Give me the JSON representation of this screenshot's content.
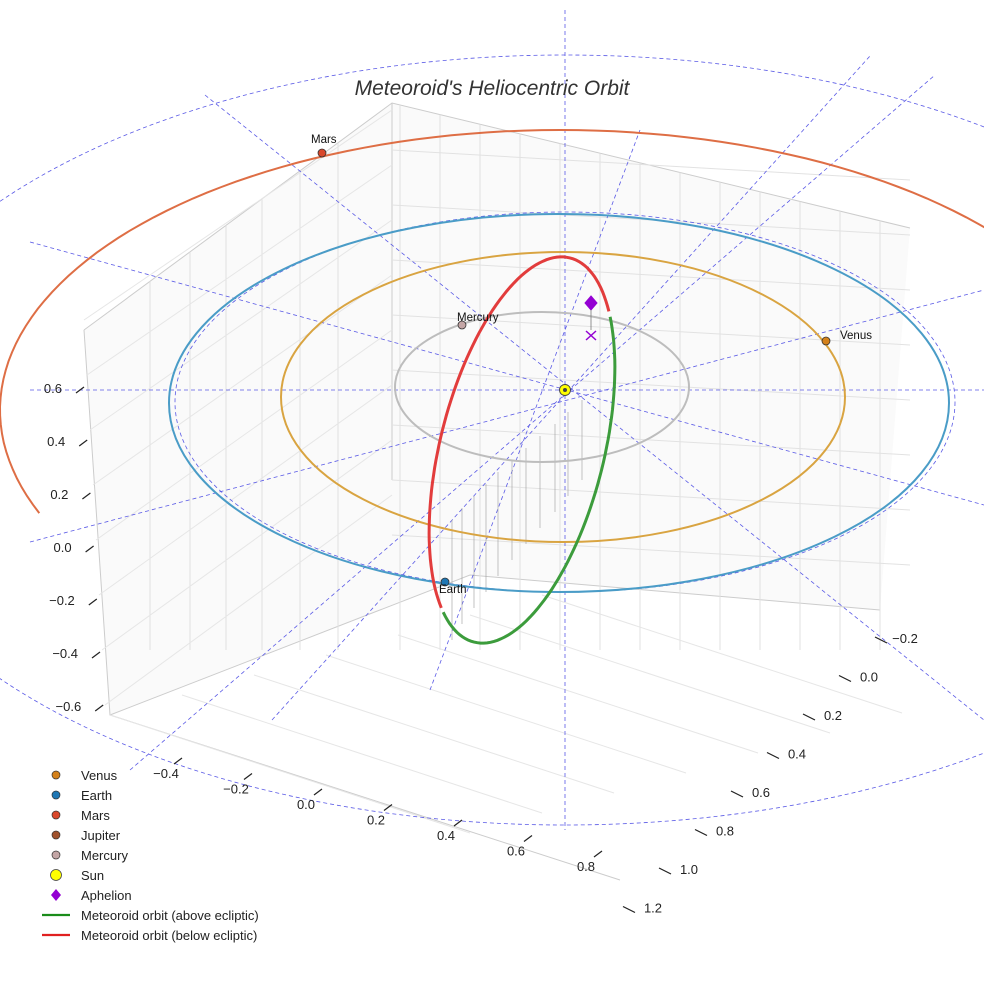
{
  "chart_data": {
    "type": "3d-orbit-plot",
    "title": "Meteoroid's Heliocentric Orbit",
    "axes": {
      "x_ticks": [
        "−0.4",
        "−0.2",
        "0.0",
        "0.2",
        "0.4",
        "0.6",
        "0.8"
      ],
      "y_ticks": [
        "−0.2",
        "0.0",
        "0.2",
        "0.4",
        "0.6",
        "0.8",
        "1.0",
        "1.2"
      ],
      "z_ticks": [
        "0.6",
        "0.4",
        "0.2",
        "0.0",
        "−0.2",
        "−0.4",
        "−0.6"
      ],
      "grid": true
    },
    "bodies": [
      {
        "name": "Venus",
        "color": "#d4811a",
        "label": "Venus"
      },
      {
        "name": "Earth",
        "color": "#1f77b4",
        "label": "Earth"
      },
      {
        "name": "Mars",
        "color": "#d9472b",
        "label": "Mars"
      },
      {
        "name": "Jupiter",
        "color": "#a0522d",
        "label": ""
      },
      {
        "name": "Mercury",
        "color": "#c4a6a6",
        "label": "Mercury"
      }
    ],
    "orbits": [
      {
        "name": "Mercury orbit",
        "color": "#bdbdbd"
      },
      {
        "name": "Venus orbit",
        "color": "#d9a441"
      },
      {
        "name": "Earth orbit",
        "color": "#4a9cc7"
      },
      {
        "name": "Mars orbit",
        "color": "#de6e45"
      },
      {
        "name": "Meteoroid orbit (above ecliptic)",
        "color": "#3c9c3c"
      },
      {
        "name": "Meteoroid orbit (below ecliptic)",
        "color": "#e23c3c"
      }
    ],
    "sun": {
      "name": "Sun",
      "color": "#ffff00"
    },
    "aphelion": {
      "name": "Aphelion",
      "color": "#9400d3"
    },
    "legend": [
      {
        "label": "Venus",
        "marker": "circle",
        "color": "#d4811a"
      },
      {
        "label": "Earth",
        "marker": "circle",
        "color": "#1f77b4"
      },
      {
        "label": "Mars",
        "marker": "circle",
        "color": "#d9472b"
      },
      {
        "label": "Jupiter",
        "marker": "circle",
        "color": "#a0522d"
      },
      {
        "label": "Mercury",
        "marker": "circle",
        "color": "#c4a6a6"
      },
      {
        "label": "Sun",
        "marker": "sun",
        "color": "#ffff00"
      },
      {
        "label": "Aphelion",
        "marker": "diamond",
        "color": "#9400d3"
      },
      {
        "label": "Meteoroid orbit (above ecliptic)",
        "marker": "line",
        "color": "#1a8c1a"
      },
      {
        "label": "Meteoroid orbit (below ecliptic)",
        "marker": "line",
        "color": "#e02020"
      }
    ],
    "legend_position": "bottom-left"
  }
}
